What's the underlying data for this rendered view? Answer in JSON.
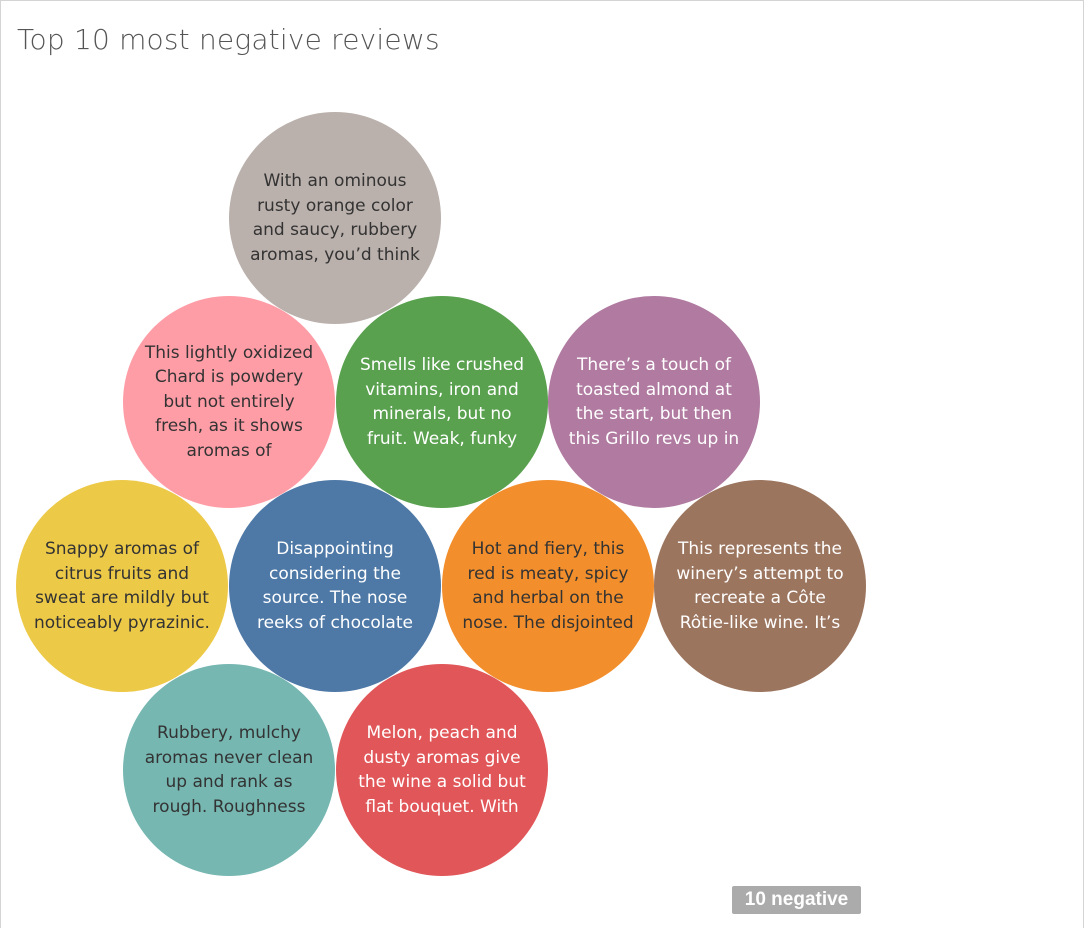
{
  "title": "Top 10 most negative reviews",
  "badge_label": "10 negative",
  "chart_data": {
    "type": "bubble",
    "title": "Top 10 most negative reviews",
    "bubbles": [
      {
        "text": "With an ominous rusty orange color and saucy, rubbery aromas, you’d think",
        "color": "#bab0ac",
        "text_color": "#333333"
      },
      {
        "text": "This lightly oxidized Chard is powdery but not entirely fresh, as it shows aromas of",
        "color": "#ff9da7",
        "text_color": "#333333"
      },
      {
        "text": "Smells like crushed vitamins, iron and minerals, but no fruit. Weak, funky",
        "color": "#59a14f",
        "text_color": "#ffffff"
      },
      {
        "text": "There’s a touch of toasted almond at the start, but then this Grillo revs up in",
        "color": "#b07aa1",
        "text_color": "#ffffff"
      },
      {
        "text": "Snappy aromas of citrus fruits and sweat are mildly but noticeably pyrazinic.",
        "color": "#edc948",
        "text_color": "#333333"
      },
      {
        "text": "Disappointing considering the source. The nose reeks of chocolate",
        "color": "#4e79a7",
        "text_color": "#ffffff"
      },
      {
        "text": "Hot and fiery, this red is meaty, spicy and herbal on the nose. The disjointed",
        "color": "#f28e2b",
        "text_color": "#333333"
      },
      {
        "text": "This represents the winery’s attempt to recreate a Côte Rôtie-like wine. It’s",
        "color": "#9c755f",
        "text_color": "#ffffff"
      },
      {
        "text": "Rubbery, mulchy aromas never clean up and rank as rough. Roughness",
        "color": "#76b7b2",
        "text_color": "#333333"
      },
      {
        "text": "Melon, peach and dusty aromas give the wine a solid but flat bouquet. With",
        "color": "#e15759",
        "text_color": "#ffffff"
      }
    ]
  }
}
